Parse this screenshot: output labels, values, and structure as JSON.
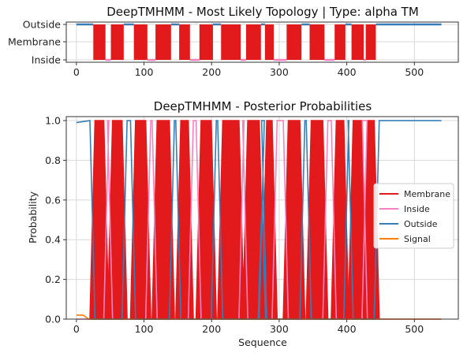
{
  "chart_data": [
    {
      "type": "step",
      "title": "DeepTMHMM - Most Likely Topology | Type: alpha TM",
      "xlabel": "",
      "ylabel": "",
      "xlim": [
        -15,
        565
      ],
      "xticks": [
        0,
        100,
        200,
        300,
        400,
        500
      ],
      "ycategories": [
        "Outside",
        "Membrane",
        "Inside"
      ],
      "grid": true,
      "colors": {
        "membrane": "#e31a1c",
        "inside": "#f781bf",
        "outside": "#377eb8",
        "signal": "#ff7f00"
      },
      "membrane_segments": [
        [
          25,
          43
        ],
        [
          51,
          70
        ],
        [
          85,
          105
        ],
        [
          117,
          140
        ],
        [
          152,
          168
        ],
        [
          182,
          202
        ],
        [
          214,
          243
        ],
        [
          251,
          273
        ],
        [
          279,
          292
        ],
        [
          311,
          333
        ],
        [
          345,
          367
        ],
        [
          382,
          398
        ],
        [
          407,
          425
        ],
        [
          428,
          443
        ]
      ],
      "length": 540
    },
    {
      "type": "line",
      "title": "DeepTMHMM - Posterior Probabilities",
      "xlabel": "Sequence",
      "ylabel": "Probability",
      "xlim": [
        -15,
        565
      ],
      "ylim": [
        0.0,
        1.02
      ],
      "xticks": [
        0,
        100,
        200,
        300,
        400,
        500
      ],
      "yticks": [
        "0.0",
        "0.2",
        "0.4",
        "0.6",
        "0.8",
        "1.0"
      ],
      "grid": true,
      "legend_position": "center-right",
      "series": [
        {
          "name": "Membrane",
          "color": "#e31a1c"
        },
        {
          "name": "Inside",
          "color": "#f781bf"
        },
        {
          "name": "Outside",
          "color": "#377eb8"
        },
        {
          "name": "Signal",
          "color": "#ff7f00"
        }
      ],
      "outside_peak": {
        "x": 275,
        "y": 0.58
      },
      "outside_start": 0.99,
      "signal_start": 0.02
    }
  ]
}
